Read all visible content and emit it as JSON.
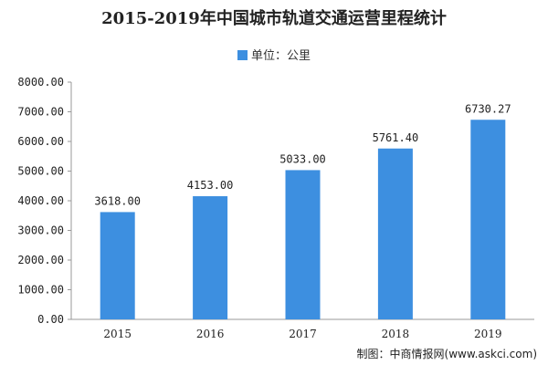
{
  "chart_data": {
    "type": "bar",
    "title": "2015-2019年中国城市轨道交通运营里程统计",
    "categories": [
      "2015",
      "2016",
      "2017",
      "2018",
      "2019"
    ],
    "series": [
      {
        "name": "单位：公里",
        "values": [
          3618.0,
          4153.0,
          5033.0,
          5761.4,
          6730.27
        ]
      }
    ],
    "data_labels": [
      "3618.00",
      "4153.00",
      "5033.00",
      "5761.40",
      "6730.27"
    ],
    "ylim": [
      0,
      8000
    ],
    "yticks": [
      "0.00",
      "1000.00",
      "2000.00",
      "3000.00",
      "4000.00",
      "5000.00",
      "6000.00",
      "7000.00",
      "8000.00"
    ],
    "grid": false,
    "legend_position": "top",
    "bar_color": "#3d8fe0"
  },
  "source": "制图：中商情报网(www.askci.com)"
}
